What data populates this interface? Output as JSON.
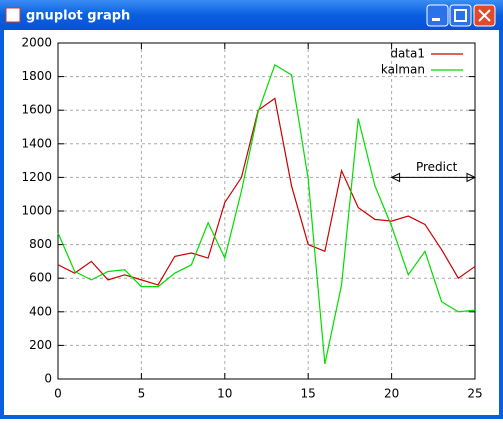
{
  "window_title": "gnuplot graph",
  "chart_data": {
    "type": "line",
    "x": [
      0,
      1,
      2,
      3,
      4,
      5,
      6,
      7,
      8,
      9,
      10,
      11,
      12,
      13,
      14,
      15,
      16,
      17,
      18,
      19,
      20,
      21,
      22,
      23,
      24,
      25
    ],
    "series": [
      {
        "name": "data1",
        "color": "#cc0000",
        "values": [
          680,
          630,
          700,
          590,
          620,
          590,
          560,
          730,
          750,
          720,
          1050,
          1200,
          1600,
          1670,
          1150,
          800,
          760,
          1240,
          1020,
          950,
          940,
          970,
          920,
          770,
          600,
          670
        ]
      },
      {
        "name": "kalman",
        "color": "#00dd00",
        "values": [
          870,
          640,
          590,
          640,
          650,
          550,
          550,
          630,
          680,
          930,
          720,
          1120,
          1590,
          1870,
          1810,
          1190,
          90,
          560,
          1550,
          1150,
          910,
          620,
          760,
          460,
          400,
          410
        ]
      }
    ],
    "xlim": [
      0,
      25
    ],
    "xticks": [
      0,
      5,
      10,
      15,
      20,
      25
    ],
    "ylim": [
      0,
      2000
    ],
    "yticks": [
      0,
      200,
      400,
      600,
      800,
      1000,
      1200,
      1400,
      1600,
      1800,
      2000
    ],
    "grid": true,
    "legend": "top-right",
    "annotations": [
      {
        "text": "Predict",
        "x": 22.7,
        "y": 1260
      }
    ],
    "arrow": {
      "x": [
        20,
        25
      ],
      "y": 1200
    }
  }
}
